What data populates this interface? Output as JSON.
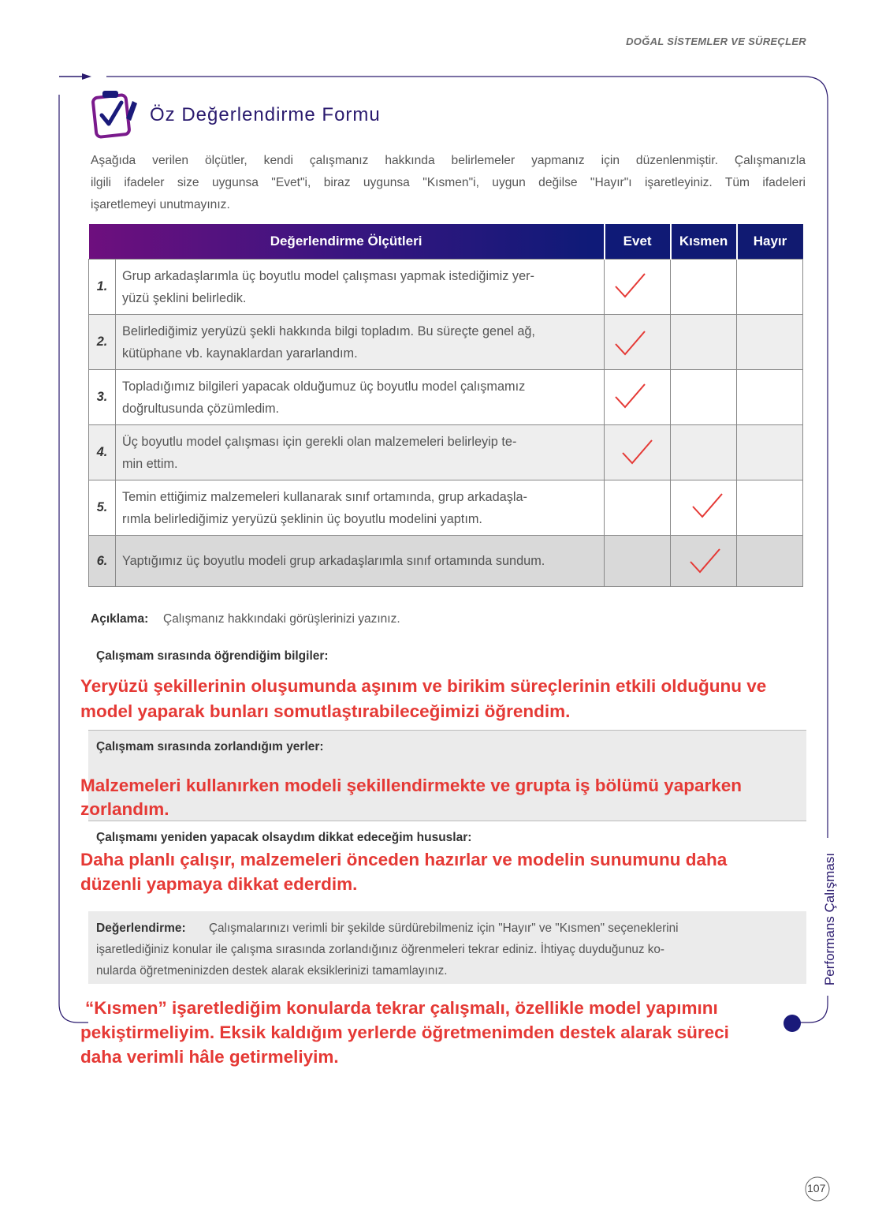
{
  "header": {
    "section": "DOĞAL SİSTEMLER VE SÜREÇLER"
  },
  "title": "Öz Değerlendirme Formu",
  "intro": [
    "Aşağıda verilen ölçütler, kendi çalışmanız hakkında belirlemeler yapmanız için düzenlenmiştir. Çalışmanızla",
    "ilgili ifadeler size uygunsa \"Evet\"i, biraz uygunsa \"Kısmen\"i, uygun değilse \"Hayır\"ı işaretleyiniz. Tüm ifadeleri",
    "işaretlemeyi unutmayınız."
  ],
  "table": {
    "headers": [
      "Değerlendirme Ölçütleri",
      "Evet",
      "Kısmen",
      "Hayır"
    ],
    "rows": [
      {
        "number": "1.",
        "lines": [
          "Grup arkadaşlarımla üç boyutlu model çalışması yapmak istediğimiz yer-",
          "yüzü şeklini belirledik."
        ]
      },
      {
        "number": "2.",
        "lines": [
          "Belirlediğimiz yeryüzü şekli hakkında bilgi topladım. Bu süreçte genel ağ,",
          "kütüphane vb. kaynaklardan yararlandım."
        ]
      },
      {
        "number": "3.",
        "lines": [
          "Topladığımız bilgileri yapacak olduğumuz üç boyutlu model çalışmamız",
          "doğrultusunda çözümledim."
        ]
      },
      {
        "number": "4.",
        "lines": [
          "Üç boyutlu model çalışması için gerekli olan malzemeleri belirleyip te-",
          "min ettim."
        ]
      },
      {
        "number": "5.",
        "lines": [
          "Temin ettiğimiz malzemeleri kullanarak sınıf ortamında, grup arkadaşla-",
          "rımla belirlediğimiz yeryüzü şeklinin üç boyutlu modelini yaptım."
        ]
      },
      {
        "number": "6.",
        "lines": [
          "Yaptığımız üç boyutlu modeli grup arkadaşlarımla sınıf ortamında sundum."
        ]
      }
    ]
  },
  "explanation": {
    "label": "Açıklama:",
    "text": "Çalışmanız hakkındaki görüşlerinizi yazınız."
  },
  "learned": {
    "label": "Çalışmam sırasında öğrendiğim bilgiler:",
    "answer": [
      "Yeryüzü şekillerinin oluşumunda aşınım ve birikim süreçlerinin etkili olduğunu ve",
      "model yaparak bunları somutlaştırabileceğimizi öğrendim."
    ]
  },
  "difficulties": {
    "label": "Çalışmam sırasında zorlandığım yerler:",
    "answer": [
      "Malzemeleri kullanırken modeli şekillendirmekte ve grupta iş bölümü yaparken",
      "zorlandım."
    ]
  },
  "redo": {
    "label": "Çalışmamı yeniden yapacak olsaydım dikkat edeceğim hususlar:",
    "answer": [
      "Daha planlı çalışır, malzemeleri önceden hazırlar ve modelin sunumunu daha",
      "düzenli yapmaya dikkat ederdim."
    ]
  },
  "evaluation": {
    "label": "Değerlendirme:",
    "lines": [
      "Çalışmalarınızı verimli bir şekilde sürdürebilmeniz için \"Hayır\" ve \"Kısmen\" seçeneklerini",
      "işaretlediğiniz konular ile çalışma sırasında zorlandığınız öğrenmeleri tekrar ediniz. İhtiyaç duyduğunuz ko-",
      "nularda öğretmeninizden destek alarak eksiklerinizi tamamlayınız."
    ],
    "answer": [
      "“Kısmen” işaretlediğim konularda tekrar çalışmalı, özellikle model yapımını",
      "pekiştirmeliyim. Eksik kaldığım yerlerde öğretmenimden destek alarak süreci",
      "daha verimli hâle getirmeliyim."
    ]
  },
  "side_label": "Performans Çalışması",
  "page_number": "107"
}
